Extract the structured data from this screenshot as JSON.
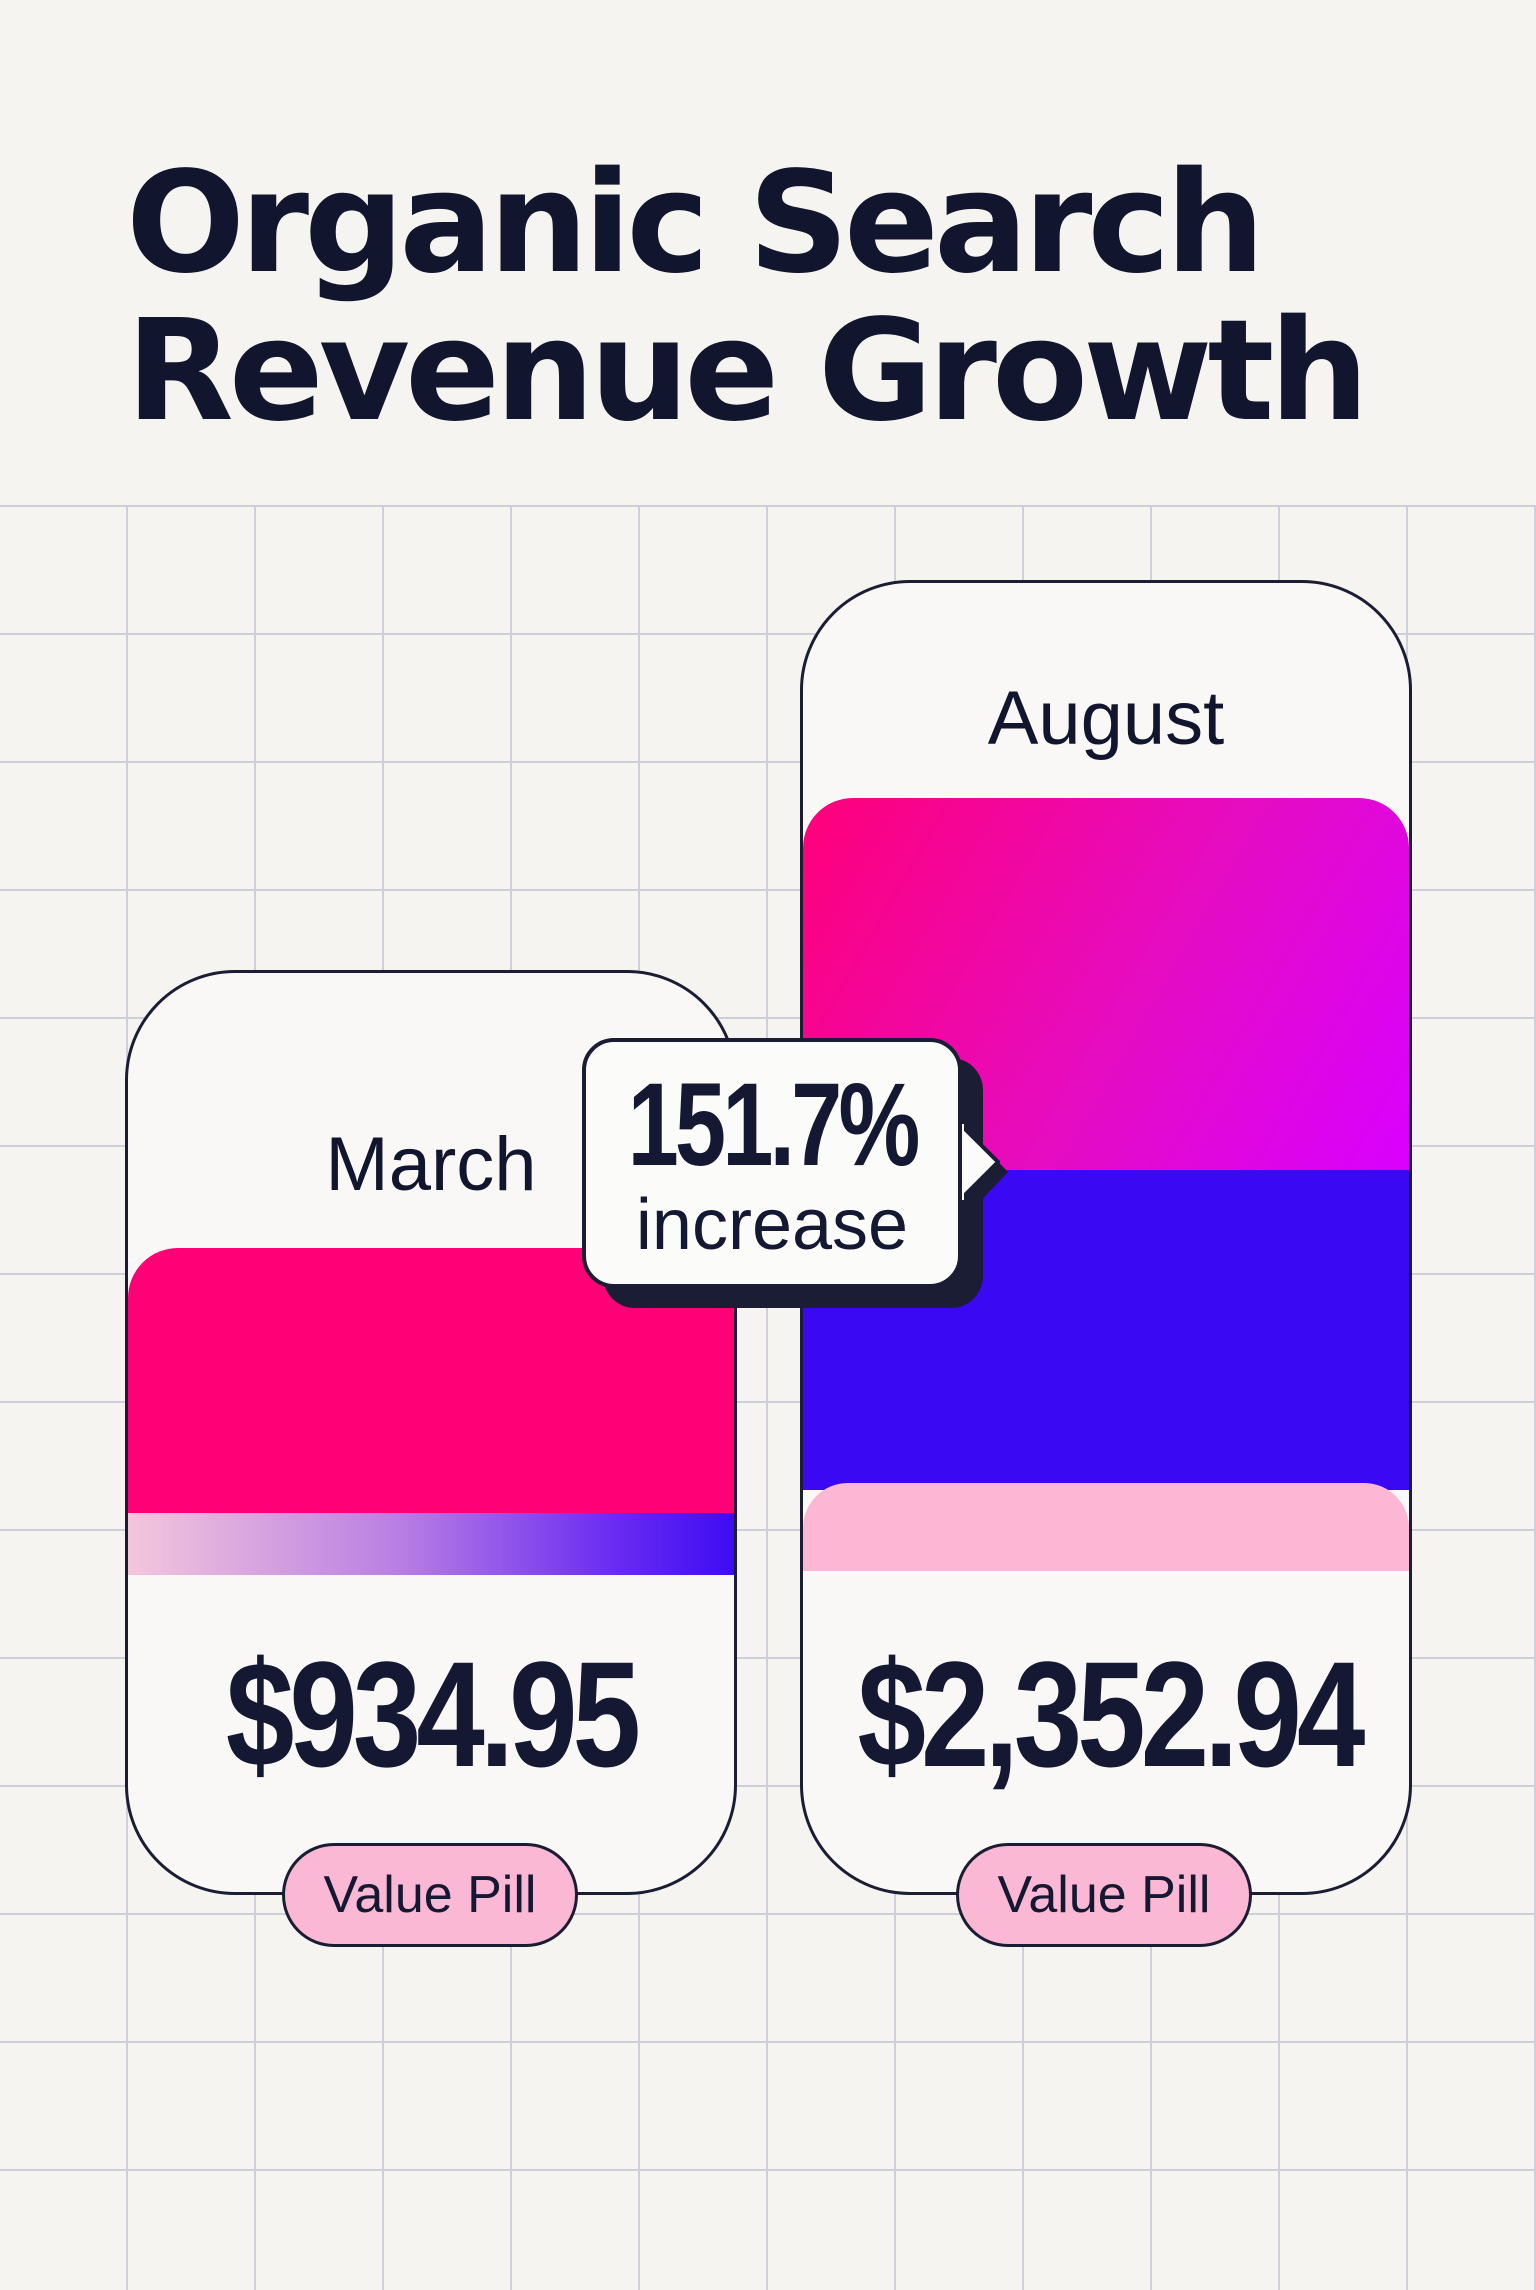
{
  "title_lines": [
    "Organic Search",
    "Revenue Growth"
  ],
  "chart_data": {
    "type": "bar",
    "title": "Organic Search Revenue Growth",
    "categories": [
      "March",
      "August"
    ],
    "values": [
      934.95,
      2352.94
    ],
    "value_labels": [
      "$934.95",
      "$2,352.94"
    ],
    "pill_labels": [
      "Value Pill",
      "Value Pill"
    ],
    "annotation": {
      "value": "151.7%",
      "label": "increase"
    },
    "colors": {
      "pink": "#ff0077",
      "magenta": "#d900ff",
      "blue": "#3a08f2",
      "light_pink": "#fdb6d3",
      "ink": "#141832",
      "background": "#f6f4f0"
    },
    "grid": true
  }
}
